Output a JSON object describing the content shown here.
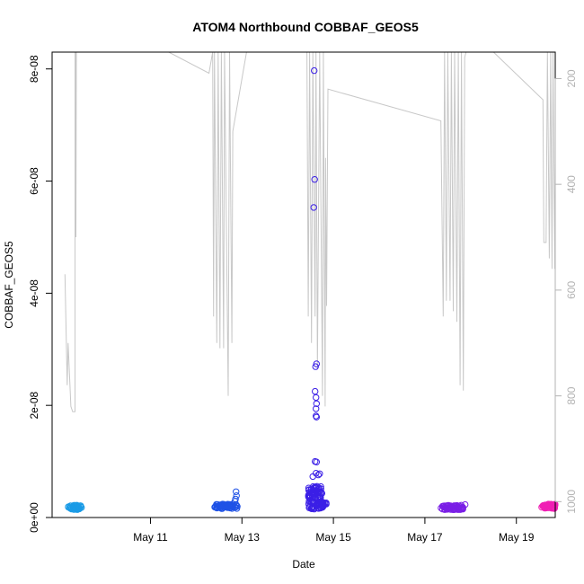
{
  "chart_data": {
    "type": "scatter",
    "title": "ATOM4 Northbound COBBAF_GEOS5",
    "xlabel": "Date",
    "ylabel": "COBBAF_GEOS5",
    "x_range_days": [
      8.85,
      19.85
    ],
    "xlim_labels": [
      "May 11",
      "May 13",
      "May 15",
      "May 17",
      "May 19"
    ],
    "x_ticks": [
      {
        "day": 11,
        "label": "May 11"
      },
      {
        "day": 13,
        "label": "May 13"
      },
      {
        "day": 15,
        "label": "May 15"
      },
      {
        "day": 17,
        "label": "May 17"
      },
      {
        "day": 19,
        "label": "May 19"
      }
    ],
    "ylim": [
      0,
      8.3e-08
    ],
    "y_ticks": [
      {
        "value": 0,
        "label": "0e+00"
      },
      {
        "value": 2e-08,
        "label": "2e-08"
      },
      {
        "value": 4e-08,
        "label": "4e-08"
      },
      {
        "value": 6e-08,
        "label": "6e-08"
      },
      {
        "value": 8e-08,
        "label": "8e-08"
      }
    ],
    "right_axis": {
      "description": "pressure (inverted), shown in grey",
      "ylim": [
        150,
        1030
      ],
      "inverted": true,
      "ticks": [
        {
          "value": 200,
          "label": "200"
        },
        {
          "value": 400,
          "label": "400"
        },
        {
          "value": 600,
          "label": "600"
        },
        {
          "value": 800,
          "label": "800"
        },
        {
          "value": 1000,
          "label": "1000"
        }
      ],
      "color": "#c8c8c8"
    },
    "series": [
      {
        "flight": 1,
        "color": "#1a9be6",
        "clusters": [
          {
            "x_start": 9.2,
            "x_end": 9.5,
            "y_center": 1.8e-09,
            "y_spread": 4e-10,
            "n": 45
          }
        ],
        "outliers": []
      },
      {
        "flight": 2,
        "color": "#1f52e6",
        "clusters": [
          {
            "x_start": 12.4,
            "x_end": 12.9,
            "y_center": 2e-09,
            "y_spread": 4e-10,
            "n": 65
          }
        ],
        "outliers": [
          {
            "x": 12.87,
            "y": 4.6e-09
          },
          {
            "x": 12.88,
            "y": 3.9e-09
          },
          {
            "x": 12.86,
            "y": 3.3e-09
          },
          {
            "x": 12.85,
            "y": 2.9e-09
          }
        ]
      },
      {
        "flight": 3,
        "color": "#3b1fe6",
        "clusters": [
          {
            "x_start": 14.45,
            "x_end": 14.85,
            "y_center": 2.2e-09,
            "y_spread": 7e-10,
            "n": 55
          },
          {
            "x_start": 14.45,
            "x_end": 14.75,
            "y_center": 4.5e-09,
            "y_spread": 1.1e-09,
            "n": 55
          }
        ],
        "outliers": [
          {
            "x": 14.58,
            "y": 7.97e-08
          },
          {
            "x": 14.59,
            "y": 6.03e-08
          },
          {
            "x": 14.57,
            "y": 5.53e-08
          },
          {
            "x": 14.63,
            "y": 2.74e-08
          },
          {
            "x": 14.61,
            "y": 2.69e-08
          },
          {
            "x": 14.6,
            "y": 2.25e-08
          },
          {
            "x": 14.62,
            "y": 2.14e-08
          },
          {
            "x": 14.63,
            "y": 2.03e-08
          },
          {
            "x": 14.62,
            "y": 1.94e-08
          },
          {
            "x": 14.62,
            "y": 1.81e-08
          },
          {
            "x": 14.63,
            "y": 1.79e-08
          },
          {
            "x": 14.6,
            "y": 1e-08
          },
          {
            "x": 14.63,
            "y": 9.9e-09
          },
          {
            "x": 14.62,
            "y": 7.9e-09
          },
          {
            "x": 14.7,
            "y": 7.8e-09
          },
          {
            "x": 14.55,
            "y": 7.3e-09
          },
          {
            "x": 14.67,
            "y": 7.6e-09
          }
        ]
      },
      {
        "flight": 4,
        "color": "#7a1fe6",
        "clusters": [
          {
            "x_start": 17.35,
            "x_end": 17.85,
            "y_center": 1.8e-09,
            "y_spread": 4e-10,
            "n": 60
          }
        ],
        "outliers": [
          {
            "x": 17.88,
            "y": 2.3e-09
          }
        ]
      },
      {
        "flight": 5,
        "color": "#f01fb4",
        "clusters": [
          {
            "x_start": 19.55,
            "x_end": 19.85,
            "y_center": 2e-09,
            "y_spread": 4e-10,
            "n": 55
          }
        ],
        "outliers": []
      }
    ],
    "pressure_trace": [
      [
        9.13,
        570
      ],
      [
        9.18,
        780
      ],
      [
        9.2,
        700
      ],
      [
        9.26,
        820
      ],
      [
        9.3,
        830
      ],
      [
        9.35,
        830
      ],
      [
        9.35,
        150
      ],
      [
        9.36,
        150
      ],
      [
        9.37,
        500
      ],
      [
        9.38,
        150
      ],
      [
        11.4,
        150
      ],
      [
        12.28,
        190
      ],
      [
        12.36,
        150
      ],
      [
        12.38,
        650
      ],
      [
        12.4,
        150
      ],
      [
        12.45,
        700
      ],
      [
        12.48,
        150
      ],
      [
        12.52,
        710
      ],
      [
        12.55,
        150
      ],
      [
        12.6,
        710
      ],
      [
        12.62,
        150
      ],
      [
        12.7,
        800
      ],
      [
        12.73,
        150
      ],
      [
        12.78,
        700
      ],
      [
        12.8,
        300
      ],
      [
        13.1,
        150
      ],
      [
        14.42,
        150
      ],
      [
        14.45,
        650
      ],
      [
        14.48,
        150
      ],
      [
        14.52,
        700
      ],
      [
        14.55,
        150
      ],
      [
        14.6,
        650
      ],
      [
        14.62,
        150
      ],
      [
        14.65,
        750
      ],
      [
        14.7,
        150
      ],
      [
        14.76,
        800
      ],
      [
        14.78,
        150
      ],
      [
        14.82,
        820
      ],
      [
        14.83,
        350
      ],
      [
        14.85,
        630
      ],
      [
        14.88,
        220
      ],
      [
        17.35,
        280
      ],
      [
        17.4,
        650
      ],
      [
        17.43,
        150
      ],
      [
        17.47,
        620
      ],
      [
        17.5,
        150
      ],
      [
        17.55,
        620
      ],
      [
        17.58,
        150
      ],
      [
        17.62,
        640
      ],
      [
        17.65,
        150
      ],
      [
        17.7,
        660
      ],
      [
        17.73,
        150
      ],
      [
        17.77,
        780
      ],
      [
        17.8,
        150
      ],
      [
        17.84,
        790
      ],
      [
        17.87,
        160
      ],
      [
        17.9,
        150
      ],
      [
        18.5,
        150
      ],
      [
        19.58,
        240
      ],
      [
        19.6,
        510
      ],
      [
        19.65,
        510
      ],
      [
        19.68,
        150
      ],
      [
        19.72,
        540
      ],
      [
        19.75,
        150
      ],
      [
        19.78,
        560
      ],
      [
        19.8,
        150
      ],
      [
        19.84,
        560
      ],
      [
        19.86,
        150
      ]
    ]
  }
}
